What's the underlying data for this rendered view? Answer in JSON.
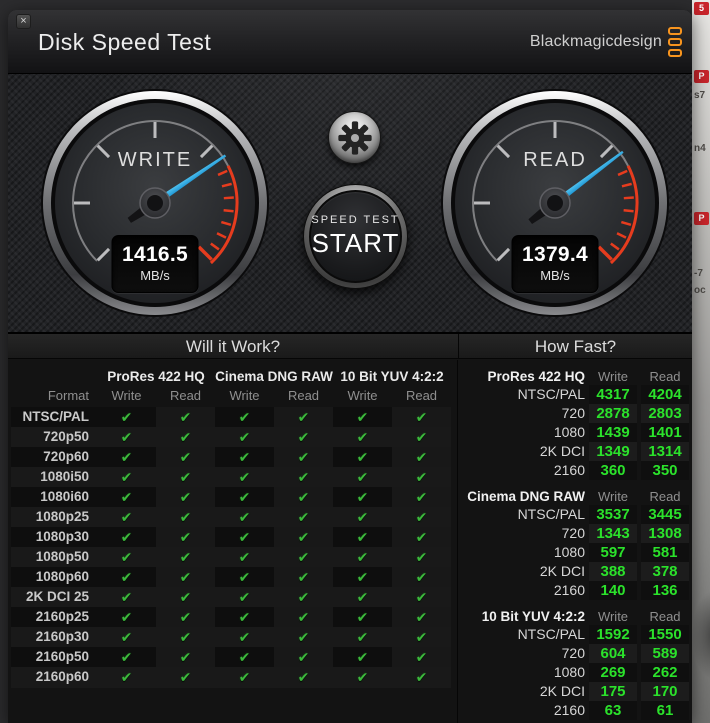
{
  "window": {
    "title": "Disk Speed Test",
    "close_glyph": "×"
  },
  "brand": {
    "logo_text": "Blackmagicdesign"
  },
  "gauges": {
    "write": {
      "label": "WRITE",
      "value": "1416.5",
      "unit": "MB/s",
      "needle_angle_deg": 56
    },
    "read": {
      "label": "READ",
      "value": "1379.4",
      "unit": "MB/s",
      "needle_angle_deg": 53
    }
  },
  "controls": {
    "start_line1": "SPEED TEST",
    "start_line2": "START"
  },
  "will_it_work": {
    "title": "Will it Work?",
    "check_glyph": "✔",
    "group_headers": [
      "ProRes 422 HQ",
      "Cinema DNG RAW",
      "10 Bit YUV 4:2:2"
    ],
    "col_headers": [
      "Format",
      "Write",
      "Read",
      "Write",
      "Read",
      "Write",
      "Read"
    ],
    "formats": [
      "NTSC/PAL",
      "720p50",
      "720p60",
      "1080i50",
      "1080i60",
      "1080p25",
      "1080p30",
      "1080p50",
      "1080p60",
      "2K DCI 25",
      "2160p25",
      "2160p30",
      "2160p50",
      "2160p60"
    ]
  },
  "how_fast": {
    "title": "How Fast?",
    "col_write": "Write",
    "col_read": "Read",
    "sections": [
      {
        "name": "ProRes 422 HQ",
        "rows": [
          [
            "NTSC/PAL",
            "4317",
            "4204"
          ],
          [
            "720",
            "2878",
            "2803"
          ],
          [
            "1080",
            "1439",
            "1401"
          ],
          [
            "2K DCI",
            "1349",
            "1314"
          ],
          [
            "2160",
            "360",
            "350"
          ]
        ]
      },
      {
        "name": "Cinema DNG RAW",
        "rows": [
          [
            "NTSC/PAL",
            "3537",
            "3445"
          ],
          [
            "720",
            "1343",
            "1308"
          ],
          [
            "1080",
            "597",
            "581"
          ],
          [
            "2K DCI",
            "388",
            "378"
          ],
          [
            "2160",
            "140",
            "136"
          ]
        ]
      },
      {
        "name": "10 Bit YUV 4:2:2",
        "rows": [
          [
            "NTSC/PAL",
            "1592",
            "1550"
          ],
          [
            "720",
            "604",
            "589"
          ],
          [
            "1080",
            "269",
            "262"
          ],
          [
            "2K DCI",
            "175",
            "170"
          ],
          [
            "2160",
            "63",
            "61"
          ]
        ]
      }
    ]
  },
  "background_window": {
    "fragments": [
      "5",
      "P",
      "s7",
      "n4",
      "P",
      "-7",
      "oc"
    ]
  },
  "colors": {
    "needle_blue": "#2aa9e0",
    "check_green": "#3cb83c",
    "value_green": "#2be22b",
    "logo_orange": "#f7941e",
    "redline": "#e63c1e"
  }
}
